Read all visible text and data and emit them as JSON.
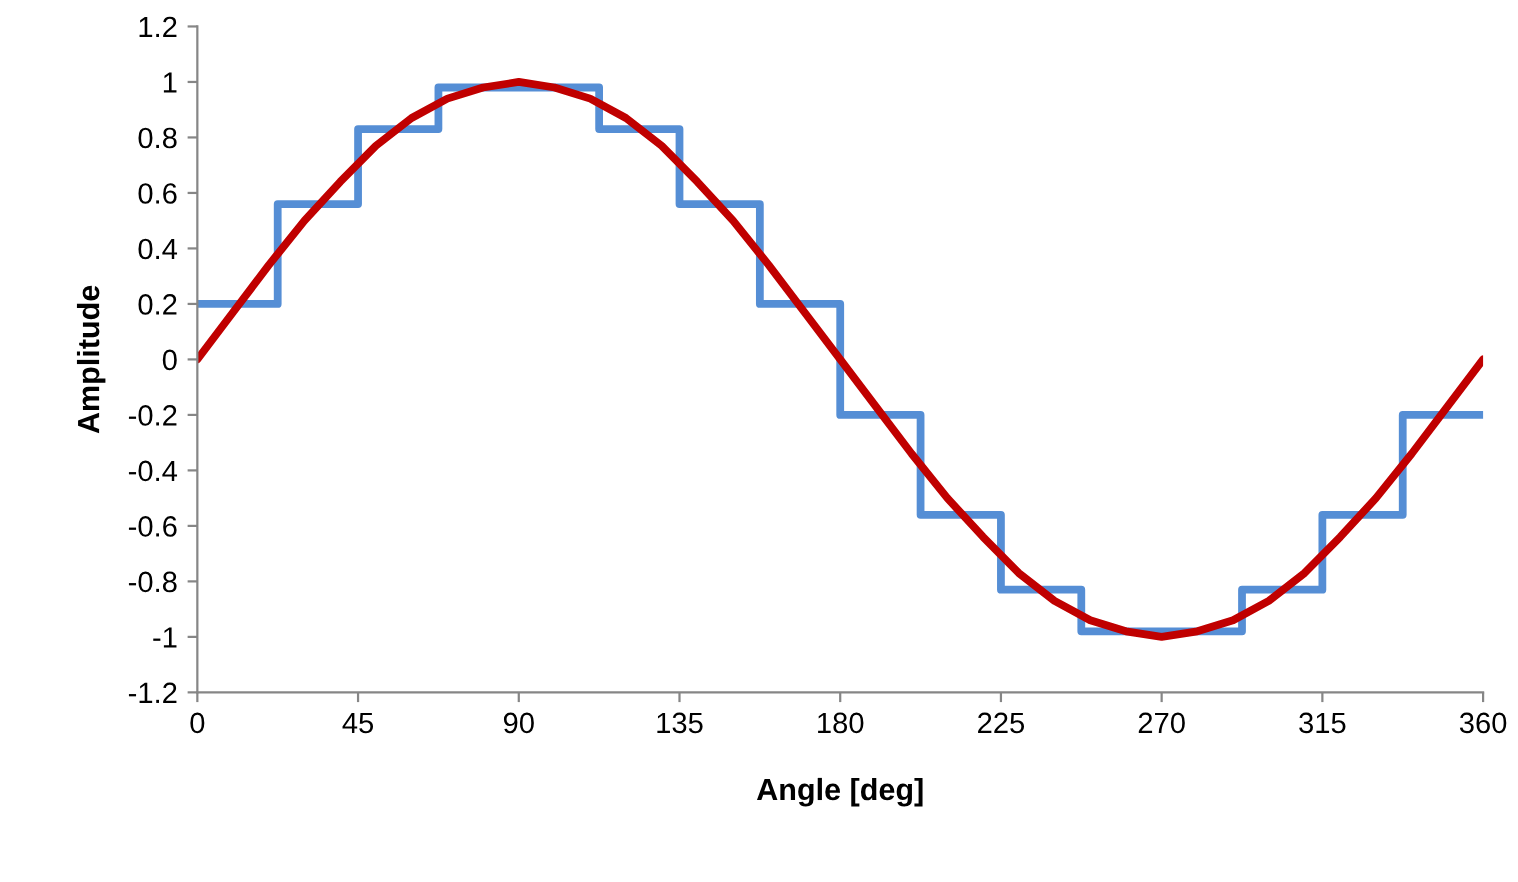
{
  "chart_data": {
    "type": "line",
    "xlabel": "Angle [deg]",
    "ylabel": "Amplitude",
    "xlim": [
      0,
      360
    ],
    "xticks": [
      0,
      45,
      90,
      135,
      180,
      225,
      270,
      315,
      360
    ],
    "ylim": [
      -1.2,
      1.2
    ],
    "yticks": [
      -1.2,
      -1,
      -0.8,
      -0.6,
      -0.4,
      -0.2,
      0,
      0.2,
      0.4,
      0.6,
      0.8,
      1,
      1.2
    ],
    "grid": false,
    "marker": "none",
    "line_style": "solid",
    "series": [
      {
        "type": "step",
        "color": "#558ed5",
        "x": [
          0,
          22.5,
          45,
          67.5,
          90,
          112.5,
          135,
          157.5,
          180,
          202.5,
          225,
          247.5,
          270,
          292.5,
          315,
          337.5,
          360
        ],
        "values": [
          0.2,
          0.56,
          0.83,
          0.98,
          0.98,
          0.83,
          0.56,
          0.2,
          -0.2,
          -0.56,
          -0.83,
          -0.98,
          -0.98,
          -0.83,
          -0.56,
          -0.2,
          -0.2
        ]
      },
      {
        "color": "#c00000",
        "x": [
          0,
          10,
          20,
          30,
          40,
          50,
          60,
          70,
          80,
          90,
          100,
          110,
          120,
          130,
          140,
          150,
          160,
          170,
          180,
          190,
          200,
          210,
          220,
          230,
          240,
          250,
          260,
          270,
          280,
          290,
          300,
          310,
          320,
          330,
          340,
          350,
          360
        ],
        "values": [
          0,
          0.17,
          0.34,
          0.5,
          0.64,
          0.77,
          0.87,
          0.94,
          0.98,
          1,
          0.98,
          0.94,
          0.87,
          0.77,
          0.64,
          0.5,
          0.34,
          0.17,
          0,
          -0.17,
          -0.34,
          -0.5,
          -0.64,
          -0.77,
          -0.87,
          -0.94,
          -0.98,
          -1,
          -0.98,
          -0.94,
          -0.87,
          -0.77,
          -0.64,
          -0.5,
          -0.34,
          -0.17,
          0
        ]
      }
    ]
  }
}
